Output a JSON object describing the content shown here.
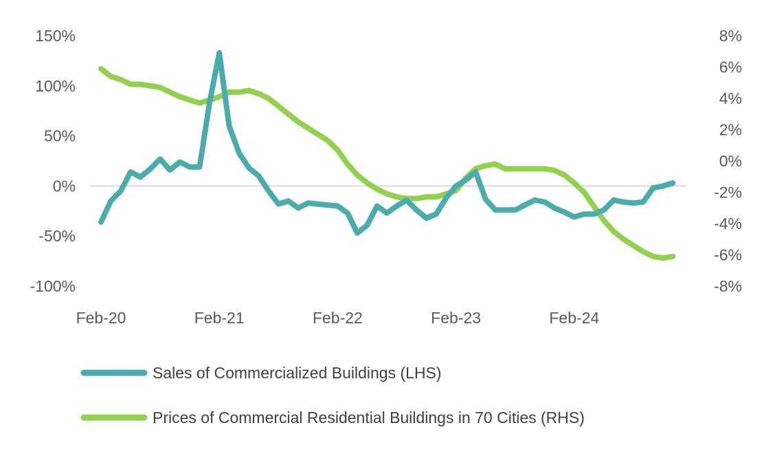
{
  "chart_data": {
    "type": "line",
    "title": "",
    "xlabel": "",
    "ylabel": "",
    "x_tick_labels": [
      "Feb-20",
      "Feb-21",
      "Feb-22",
      "Feb-23",
      "Feb-24"
    ],
    "ylim": [
      -100,
      150
    ],
    "y_tick_labels": [
      "150%",
      "100%",
      "50%",
      "0%",
      "-50%",
      "-100%"
    ],
    "y2lim": [
      -8,
      8
    ],
    "y2_tick_labels": [
      "8%",
      "6%",
      "4%",
      "2%",
      "0%",
      "-2%",
      "-4%",
      "-6%",
      "-8%"
    ],
    "grid": false,
    "zero_line": true,
    "legend_position": "bottom",
    "x": [
      "Feb-20",
      "Mar-20",
      "Apr-20",
      "May-20",
      "Jun-20",
      "Jul-20",
      "Aug-20",
      "Sep-20",
      "Oct-20",
      "Nov-20",
      "Dec-20",
      "Jan-21",
      "Feb-21",
      "Mar-21",
      "Apr-21",
      "May-21",
      "Jun-21",
      "Jul-21",
      "Aug-21",
      "Sep-21",
      "Oct-21",
      "Nov-21",
      "Dec-21",
      "Jan-22",
      "Feb-22",
      "Mar-22",
      "Apr-22",
      "May-22",
      "Jun-22",
      "Jul-22",
      "Aug-22",
      "Sep-22",
      "Oct-22",
      "Nov-22",
      "Dec-22",
      "Jan-23",
      "Feb-23",
      "Mar-23",
      "Apr-23",
      "May-23",
      "Jun-23",
      "Jul-23",
      "Aug-23",
      "Sep-23",
      "Oct-23",
      "Nov-23",
      "Dec-23",
      "Jan-24",
      "Feb-24",
      "Mar-24",
      "Apr-24",
      "May-24",
      "Jun-24",
      "Jul-24",
      "Aug-24",
      "Sep-24",
      "Oct-24",
      "Nov-24",
      "Dec-24"
    ],
    "series": [
      {
        "name": "Sales of Commercialized Buildings (LHS)",
        "axis": "left",
        "color": "#4BACAC",
        "x_start": 0,
        "values": [
          -36,
          -15,
          -5,
          14,
          9,
          17,
          27,
          16,
          24,
          19,
          19,
          83,
          133,
          60,
          33,
          18,
          10,
          -5,
          -18,
          -15,
          -22,
          -17,
          -18,
          -19,
          -20,
          -27,
          -47,
          -39,
          -20,
          -27,
          -20,
          -14,
          -24,
          -32,
          -28,
          -12,
          0,
          6,
          14,
          -13,
          -24,
          -24,
          -24,
          -19,
          -14,
          -16,
          -22,
          -26,
          -31,
          -28,
          -28,
          -24,
          -14,
          -16,
          -17,
          -16,
          -2,
          0,
          3
        ],
        "x_index_note": ""
      },
      {
        "name": "Prices of Commercial Residential Buildings in 70 Cities (RHS)",
        "axis": "right",
        "color": "#92D050",
        "values": [
          5.9,
          5.4,
          5.2,
          4.9,
          4.9,
          4.8,
          4.7,
          4.4,
          4.1,
          3.9,
          3.7,
          3.9,
          4.1,
          4.4,
          4.4,
          4.5,
          4.3,
          4.0,
          3.5,
          3.0,
          2.5,
          2.1,
          1.7,
          1.3,
          0.7,
          -0.2,
          -0.9,
          -1.4,
          -1.8,
          -2.1,
          -2.3,
          -2.4,
          -2.4,
          -2.3,
          -2.3,
          -2.1,
          -1.9,
          -1.1,
          -0.5,
          -0.3,
          -0.2,
          -0.5,
          -0.5,
          -0.5,
          -0.5,
          -0.5,
          -0.6,
          -0.9,
          -1.4,
          -2.0,
          -2.9,
          -3.8,
          -4.5,
          -5.0,
          -5.4,
          -5.8,
          -6.1,
          -6.2,
          -6.1
        ]
      }
    ]
  }
}
